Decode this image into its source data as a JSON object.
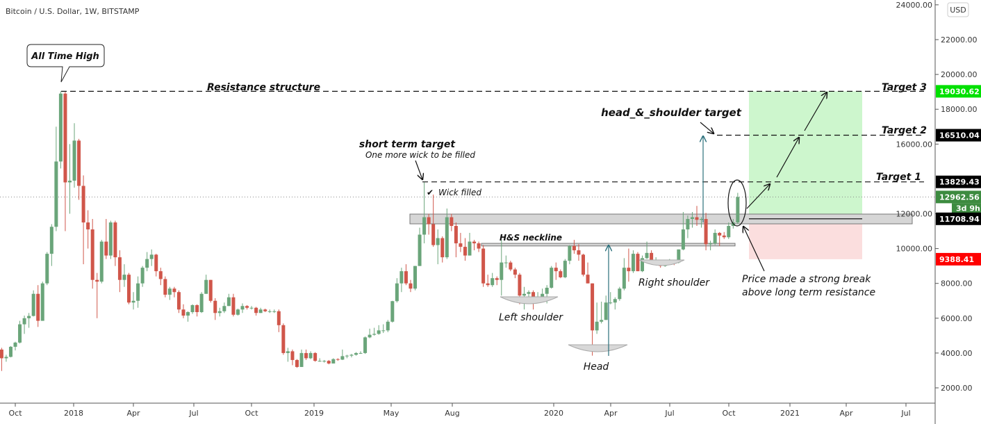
{
  "header": {
    "title": "Bitcoin / U.S. Dollar, 1W, BITSTAMP",
    "currency": "USD"
  },
  "colors": {
    "up": "#6aa57a",
    "down": "#d0564a",
    "target3": "#00e000",
    "black_label": "#000000",
    "current": "#3d8b40",
    "stop": "#ff0000",
    "profit_zone": "#c8f5c8",
    "loss_zone": "#fbdada",
    "zone": "#d6d6d6"
  },
  "chart_data": {
    "type": "candlestick",
    "title": "Bitcoin / U.S. Dollar, 1W, BITSTAMP",
    "interval": "1W",
    "ylim": [
      1000,
      24500
    ],
    "y_ticks": [
      "2000.00",
      "4000.00",
      "6000.00",
      "8000.00",
      "10000.00",
      "12000.00",
      "16000.00",
      "18000.00",
      "20000.00",
      "22000.00",
      "24000.00"
    ],
    "x_ticks": [
      "Oct",
      "2018",
      "Apr",
      "Jul",
      "Oct",
      "2019",
      "May",
      "Aug",
      "2020",
      "Apr",
      "Jul",
      "Oct",
      "2021",
      "Apr",
      "Jul"
    ],
    "first_week": "2017-09-11",
    "candles_ohlc": [
      [
        4200,
        4300,
        2970,
        3700
      ],
      [
        3700,
        3900,
        3500,
        3780
      ],
      [
        3780,
        4400,
        3750,
        4360
      ],
      [
        4360,
        4650,
        4150,
        4600
      ],
      [
        4600,
        5850,
        4550,
        5650
      ],
      [
        5650,
        6150,
        5100,
        6000
      ],
      [
        6000,
        6300,
        5450,
        6130
      ],
      [
        6130,
        7600,
        6100,
        7400
      ],
      [
        7400,
        7900,
        5500,
        5850
      ],
      [
        5850,
        8100,
        5850,
        8000
      ],
      [
        8000,
        9800,
        7900,
        9700
      ],
      [
        9700,
        11400,
        9000,
        11250
      ],
      [
        11250,
        17000,
        11000,
        15000
      ],
      [
        15000,
        19030,
        14600,
        18900
      ],
      [
        18900,
        19000,
        11000,
        13800
      ],
      [
        13800,
        16000,
        12000,
        13900
      ],
      [
        13900,
        17200,
        13500,
        16200
      ],
      [
        16200,
        16300,
        12800,
        13600
      ],
      [
        13600,
        14200,
        9100,
        11500
      ],
      [
        11500,
        12200,
        10000,
        11100
      ],
      [
        11100,
        11700,
        7700,
        8200
      ],
      [
        8200,
        8600,
        6000,
        8100
      ],
      [
        8100,
        10500,
        8000,
        10400
      ],
      [
        10400,
        11700,
        9400,
        9600
      ],
      [
        9600,
        11600,
        9400,
        11500
      ],
      [
        11500,
        11600,
        9000,
        9500
      ],
      [
        9500,
        9900,
        7500,
        8200
      ],
      [
        8200,
        9100,
        7800,
        8500
      ],
      [
        8500,
        8600,
        6800,
        6900
      ],
      [
        6900,
        7500,
        6500,
        7000
      ],
      [
        7000,
        8400,
        6600,
        8000
      ],
      [
        8000,
        9000,
        7800,
        8900
      ],
      [
        8900,
        9800,
        8700,
        9400
      ],
      [
        9400,
        9950,
        9000,
        9650
      ],
      [
        9650,
        9700,
        8400,
        8700
      ],
      [
        8700,
        8900,
        7900,
        8250
      ],
      [
        8250,
        8400,
        7200,
        7350
      ],
      [
        7350,
        7800,
        7050,
        7700
      ],
      [
        7700,
        7800,
        7200,
        7500
      ],
      [
        7500,
        7600,
        6300,
        6500
      ],
      [
        6500,
        6800,
        6000,
        6150
      ],
      [
        6150,
        6400,
        5800,
        6350
      ],
      [
        6350,
        6800,
        6250,
        6750
      ],
      [
        6750,
        6800,
        6100,
        6350
      ],
      [
        6350,
        7500,
        6300,
        7400
      ],
      [
        7400,
        8500,
        7400,
        8200
      ],
      [
        8200,
        8200,
        6900,
        7000
      ],
      [
        7000,
        7150,
        5900,
        6300
      ],
      [
        6300,
        6600,
        6100,
        6400
      ],
      [
        6400,
        6900,
        6300,
        6700
      ],
      [
        6700,
        7400,
        6700,
        7200
      ],
      [
        7200,
        7400,
        6100,
        6200
      ],
      [
        6200,
        6550,
        6150,
        6500
      ],
      [
        6500,
        6850,
        6300,
        6700
      ],
      [
        6700,
        6750,
        6500,
        6600
      ],
      [
        6600,
        6700,
        6500,
        6600
      ],
      [
        6600,
        6650,
        6150,
        6300
      ],
      [
        6300,
        6600,
        6300,
        6500
      ],
      [
        6500,
        6550,
        6350,
        6400
      ],
      [
        6400,
        6500,
        6300,
        6400
      ],
      [
        6400,
        6500,
        6300,
        6400
      ],
      [
        6400,
        6500,
        5200,
        5600
      ],
      [
        5600,
        5700,
        3900,
        4000
      ],
      [
        4000,
        4300,
        3500,
        4100
      ],
      [
        4100,
        4200,
        3300,
        3600
      ],
      [
        3600,
        3650,
        3150,
        3200
      ],
      [
        3200,
        4200,
        3200,
        4000
      ],
      [
        4000,
        4200,
        3600,
        3700
      ],
      [
        3700,
        4100,
        3650,
        4000
      ],
      [
        4000,
        4050,
        3500,
        3550
      ],
      [
        3550,
        3700,
        3500,
        3550
      ],
      [
        3550,
        3600,
        3450,
        3550
      ],
      [
        3550,
        3600,
        3350,
        3400
      ],
      [
        3400,
        3700,
        3400,
        3650
      ],
      [
        3650,
        3700,
        3550,
        3620
      ],
      [
        3620,
        4200,
        3600,
        3820
      ],
      [
        3820,
        3900,
        3700,
        3850
      ],
      [
        3850,
        3950,
        3750,
        3900
      ],
      [
        3900,
        4050,
        3850,
        4000
      ],
      [
        4000,
        4100,
        3950,
        4000
      ],
      [
        4000,
        4950,
        3950,
        4900
      ],
      [
        4900,
        5400,
        4850,
        5050
      ],
      [
        5050,
        5450,
        5000,
        5100
      ],
      [
        5100,
        5600,
        5050,
        5300
      ],
      [
        5300,
        5650,
        5150,
        5300
      ],
      [
        5300,
        5900,
        5200,
        5800
      ],
      [
        5800,
        7000,
        5750,
        6980
      ],
      [
        6980,
        8300,
        6900,
        8000
      ],
      [
        8000,
        8900,
        7500,
        8700
      ],
      [
        8700,
        9100,
        7900,
        8000
      ],
      [
        8000,
        8200,
        7500,
        7700
      ],
      [
        7700,
        9000,
        7600,
        9000
      ],
      [
        9000,
        11200,
        9000,
        10800
      ],
      [
        10800,
        13800,
        10300,
        11800
      ],
      [
        11800,
        12000,
        10800,
        11400
      ],
      [
        11400,
        13100,
        10100,
        10200
      ],
      [
        10200,
        11100,
        9100,
        10600
      ],
      [
        10600,
        10700,
        9200,
        9500
      ],
      [
        9500,
        12300,
        9400,
        11800
      ],
      [
        11800,
        12000,
        11000,
        11300
      ],
      [
        11300,
        11500,
        9500,
        10300
      ],
      [
        10300,
        10900,
        9800,
        10100
      ],
      [
        10100,
        10600,
        9300,
        9600
      ],
      [
        9600,
        10900,
        9600,
        10400
      ],
      [
        10400,
        10500,
        9900,
        10300
      ],
      [
        10300,
        10400,
        9800,
        10000
      ],
      [
        10000,
        10200,
        7800,
        8000
      ],
      [
        8000,
        8500,
        7800,
        7900
      ],
      [
        7900,
        8600,
        7800,
        8300
      ],
      [
        8300,
        8400,
        7900,
        8200
      ],
      [
        8200,
        10500,
        7300,
        9200
      ],
      [
        9200,
        9600,
        8900,
        9200
      ],
      [
        9200,
        9300,
        8700,
        8800
      ],
      [
        8800,
        8900,
        8300,
        8500
      ],
      [
        8500,
        8600,
        6800,
        7300
      ],
      [
        7300,
        7800,
        6500,
        7400
      ],
      [
        7400,
        7600,
        7150,
        7500
      ],
      [
        7500,
        7600,
        6500,
        7100
      ],
      [
        7100,
        7500,
        6900,
        7200
      ],
      [
        7200,
        7700,
        7100,
        7400
      ],
      [
        7400,
        7900,
        6850,
        7750
      ],
      [
        7750,
        9000,
        7700,
        8900
      ],
      [
        8900,
        9200,
        8200,
        8700
      ],
      [
        8700,
        8800,
        8300,
        8350
      ],
      [
        8350,
        9400,
        8300,
        9300
      ],
      [
        9300,
        10200,
        9100,
        10150
      ],
      [
        10150,
        10500,
        9700,
        9900
      ],
      [
        9900,
        10250,
        9300,
        9650
      ],
      [
        9650,
        9700,
        8400,
        8500
      ],
      [
        8500,
        9200,
        8000,
        8000
      ],
      [
        8000,
        8000,
        3850,
        5300
      ],
      [
        5300,
        6900,
        5100,
        5800
      ],
      [
        5800,
        6950,
        5700,
        5900
      ],
      [
        5900,
        7300,
        5900,
        6900
      ],
      [
        6900,
        7500,
        6800,
        6900
      ],
      [
        6900,
        7200,
        6500,
        7100
      ],
      [
        7100,
        7800,
        7000,
        7700
      ],
      [
        7700,
        9450,
        7600,
        8900
      ],
      [
        8900,
        10000,
        8100,
        8700
      ],
      [
        8700,
        9900,
        8600,
        9700
      ],
      [
        9700,
        9800,
        8700,
        8700
      ],
      [
        8700,
        9600,
        8650,
        9450
      ],
      [
        9450,
        10400,
        9400,
        9750
      ],
      [
        9750,
        9900,
        9200,
        9300
      ],
      [
        9300,
        9500,
        9050,
        9300
      ],
      [
        9300,
        9350,
        8900,
        9000
      ],
      [
        9000,
        9250,
        8950,
        9100
      ],
      [
        9100,
        9400,
        9050,
        9250
      ],
      [
        9250,
        9300,
        9050,
        9200
      ],
      [
        9200,
        9950,
        9150,
        9950
      ],
      [
        9950,
        12100,
        9900,
        11100
      ],
      [
        11100,
        11900,
        10600,
        11700
      ],
      [
        11700,
        12100,
        11200,
        11800
      ],
      [
        11800,
        12450,
        11300,
        11650
      ],
      [
        11650,
        11800,
        11200,
        11700
      ],
      [
        11700,
        12050,
        9900,
        10250
      ],
      [
        10250,
        10450,
        9900,
        10300
      ],
      [
        10300,
        11100,
        10200,
        10900
      ],
      [
        10900,
        10950,
        10150,
        10750
      ],
      [
        10750,
        10950,
        10550,
        10650
      ],
      [
        10650,
        11500,
        10550,
        11300
      ],
      [
        11300,
        11700,
        11150,
        11500
      ],
      [
        11500,
        13200,
        11400,
        12962.56
      ]
    ],
    "levels": {
      "target3": 19030.62,
      "target2": 16510.04,
      "target1": 13829.43,
      "current": 12962.56,
      "resistance": 11708.94,
      "stop": 9388.41,
      "resistance_zone": [
        11420,
        11980
      ],
      "neckline_zone": [
        10150,
        10300
      ]
    },
    "price_labels": {
      "target3": "19030.62",
      "target2": "16510.04",
      "target1": "13829.43",
      "current": "12962.56",
      "countdown": "3d 9h",
      "resistance": "11708.94",
      "stop": "9388.41"
    },
    "annotations": {
      "ath": "All Time High",
      "resistance_structure": "Resistance structure",
      "target3": "Target 3",
      "target2": "Target 2",
      "target1": "Target 1",
      "hs_target": "head_&_shoulder target",
      "short_term_target": "short term target",
      "short_term_sub": "One more wick to be filled",
      "wick_filled": "Wick filled",
      "neckline": "H&S neckline",
      "left_shoulder": "Left shoulder",
      "head": "Head",
      "right_shoulder": "Right shoulder",
      "break_line1": "Price made a strong break",
      "break_line2": "above long term resistance"
    }
  }
}
